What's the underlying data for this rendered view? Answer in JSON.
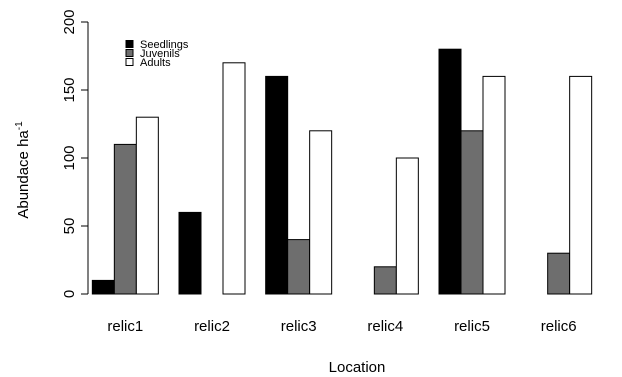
{
  "chart_data": {
    "type": "bar",
    "title": "",
    "xlabel": "Location",
    "ylabel": "Abundace ha",
    "ylabel_superscript": "-1",
    "categories": [
      "relic1",
      "relic2",
      "relic3",
      "relic4",
      "relic5",
      "relic6"
    ],
    "series": [
      {
        "name": "Seedlings",
        "color": "#000000",
        "values": [
          10,
          60,
          160,
          0,
          180,
          0
        ]
      },
      {
        "name": "Juvenils",
        "color": "#6e6e6e",
        "values": [
          110,
          0,
          40,
          20,
          120,
          30
        ]
      },
      {
        "name": "Adults",
        "color": "#ffffff",
        "values": [
          130,
          170,
          120,
          100,
          160,
          160
        ]
      }
    ],
    "ylim": [
      0,
      200
    ],
    "yticks": [
      0,
      50,
      100,
      150,
      200
    ],
    "grid": false,
    "legend_position": "top-left"
  }
}
